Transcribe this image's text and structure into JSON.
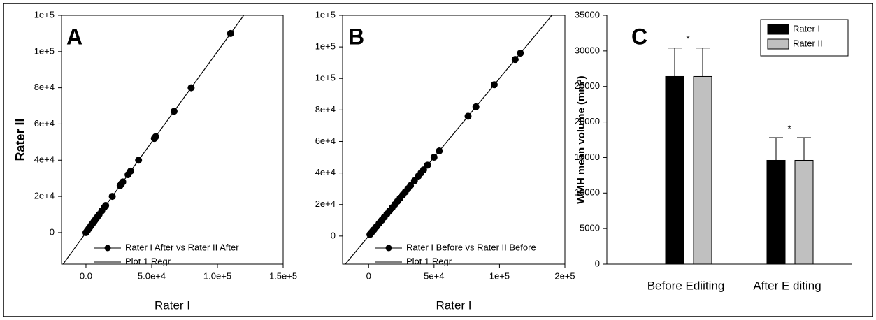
{
  "chart_data": [
    {
      "type": "scatter",
      "panel": "A",
      "xlabel": "Rater I",
      "ylabel": "Rater II",
      "xlim": [
        -18600,
        150000
      ],
      "ylim": [
        -17400,
        120000
      ],
      "xticks": [
        {
          "value": 0,
          "label": "0.0"
        },
        {
          "value": 50000,
          "label": "5.0e+4"
        },
        {
          "value": 100000,
          "label": "1.0e+5"
        },
        {
          "value": 150000,
          "label": "1.5e+5"
        }
      ],
      "yticks": [
        0,
        {
          "value": 20000,
          "label": "2e+4"
        },
        {
          "value": 40000,
          "label": "4e+4"
        },
        {
          "value": 60000,
          "label": "6e+4"
        },
        {
          "value": 80000,
          "label": "8e+4"
        },
        {
          "value": 100000,
          "label": "1e+5"
        },
        {
          "value": 120000,
          "label": "1e+5"
        }
      ],
      "series": [
        {
          "name": "Rater I After vs Rater II After",
          "color": "#000000",
          "style": "points",
          "x": [
            0,
            1000,
            2000,
            3000,
            4000,
            5000,
            6000,
            7000,
            8000,
            9000,
            10000,
            12000,
            14000,
            15000,
            20000,
            26000,
            27000,
            28000,
            32000,
            34000,
            40000,
            52000,
            53000,
            67000,
            80000,
            110000
          ],
          "values": [
            0,
            1000,
            2000,
            3000,
            4000,
            5000,
            6000,
            7000,
            8000,
            9000,
            10000,
            12000,
            14000,
            15000,
            20000,
            26000,
            27000,
            28000,
            32000,
            34000,
            40000,
            52000,
            53000,
            67000,
            80000,
            110000
          ]
        },
        {
          "name": "Plot 1 Regr",
          "color": "#000000",
          "style": "line",
          "x": [
            -17400,
            120000
          ],
          "values": [
            -17400,
            120000
          ]
        }
      ]
    },
    {
      "type": "scatter",
      "panel": "B",
      "xlabel": "Rater I",
      "xlim": [
        -19900,
        150000
      ],
      "ylim": [
        -17800,
        140000
      ],
      "xticks": [
        0,
        {
          "value": 50000,
          "label": "5e+4"
        },
        {
          "value": 100000,
          "label": "1e+5"
        },
        {
          "value": 150000,
          "label": "2e+5"
        }
      ],
      "yticks": [
        0,
        {
          "value": 20000,
          "label": "2e+4"
        },
        {
          "value": 40000,
          "label": "4e+4"
        },
        {
          "value": 60000,
          "label": "6e+4"
        },
        {
          "value": 80000,
          "label": "8e+4"
        },
        {
          "value": 100000,
          "label": "1e+5"
        },
        {
          "value": 120000,
          "label": "1e+5"
        },
        {
          "value": 140000,
          "label": "1e+5"
        }
      ],
      "series": [
        {
          "name": "Rater I Before vs Rater II Before",
          "color": "#000000",
          "style": "points",
          "x": [
            1000,
            2000,
            3000,
            4000,
            6000,
            8000,
            10000,
            12000,
            14000,
            16000,
            18000,
            20000,
            22000,
            24000,
            26000,
            28000,
            30000,
            32000,
            35000,
            38000,
            40000,
            42000,
            45000,
            50000,
            54000,
            76000,
            82000,
            96000,
            112000,
            116000
          ],
          "values": [
            1000,
            2000,
            3000,
            4000,
            6000,
            8000,
            10000,
            12000,
            14000,
            16000,
            18000,
            20000,
            22000,
            24000,
            26000,
            28000,
            30000,
            32000,
            35000,
            38000,
            40000,
            42000,
            45000,
            50000,
            54000,
            76000,
            82000,
            96000,
            112000,
            116000
          ]
        },
        {
          "name": "Plot 1 Regr",
          "color": "#000000",
          "style": "line",
          "x": [
            -17800,
            140000
          ],
          "values": [
            -17800,
            140000
          ]
        }
      ]
    },
    {
      "type": "bar",
      "panel": "C",
      "ylabel": "WMH mean volume (mm³)",
      "categories": [
        "Before Ediiting",
        "After E diting"
      ],
      "ylim": [
        0,
        35000
      ],
      "yticks": [
        0,
        5000,
        10000,
        15000,
        20000,
        25000,
        30000,
        35000
      ],
      "series": [
        {
          "name": "Rater I",
          "color": "#000000",
          "values": [
            26400,
            14600
          ],
          "errors": [
            4000,
            3200
          ]
        },
        {
          "name": "Rater II",
          "color": "#c0c0c0",
          "values": [
            26400,
            14600
          ],
          "errors": [
            4000,
            3200
          ]
        }
      ],
      "annotations": [
        "*",
        "*"
      ]
    }
  ]
}
